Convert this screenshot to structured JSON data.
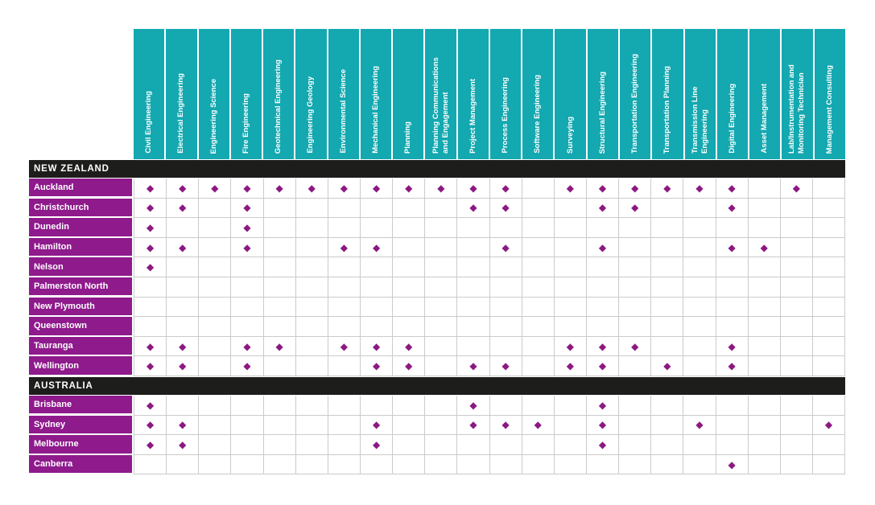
{
  "colors": {
    "teal": "#14A8B0",
    "purple": "#8E1A8C",
    "bar": "#1D1D1B",
    "grid": "#CBCBCB",
    "diamond": "#8C1982"
  },
  "chart_data": {
    "type": "table",
    "marker": "◆",
    "legend_note": "diamond marks discipline available at location",
    "columns": [
      "Civil Engineering",
      "Electrical Engineering",
      "Engineering Science",
      "Fire Engineering",
      "Geotechnical Engineering",
      "Engineering Geology",
      "Environmental Science",
      "Mechanical Engineering",
      "Planning",
      "Planning Communications and Engagement",
      "Project Management",
      "Process Engineering",
      "Software Engineering",
      "Surveying",
      "Structural Engineering",
      "Transportation Engineering",
      "Transportation Planning",
      "Transmission Line Engineering",
      "Digital Engineering",
      "Asset Management",
      "Lab/Instrumentation and Monitoring Technician",
      "Management Consulting"
    ],
    "sections": [
      {
        "title": "NEW ZEALAND",
        "rows": [
          {
            "location": "Auckland",
            "discipline_indices": [
              0,
              1,
              2,
              3,
              4,
              5,
              6,
              7,
              8,
              9,
              10,
              11,
              13,
              14,
              15,
              16,
              17,
              18,
              20
            ]
          },
          {
            "location": "Christchurch",
            "discipline_indices": [
              0,
              1,
              3,
              10,
              11,
              14,
              15,
              18
            ]
          },
          {
            "location": "Dunedin",
            "discipline_indices": [
              0,
              3
            ]
          },
          {
            "location": "Hamilton",
            "discipline_indices": [
              0,
              1,
              3,
              6,
              7,
              11,
              14,
              18,
              19
            ]
          },
          {
            "location": "Nelson",
            "discipline_indices": [
              0
            ]
          },
          {
            "location": "Palmerston North",
            "discipline_indices": []
          },
          {
            "location": "New Plymouth",
            "discipline_indices": []
          },
          {
            "location": "Queenstown",
            "discipline_indices": []
          },
          {
            "location": "Tauranga",
            "discipline_indices": [
              0,
              1,
              3,
              4,
              6,
              7,
              8,
              13,
              14,
              15,
              18
            ]
          },
          {
            "location": "Wellington",
            "discipline_indices": [
              0,
              1,
              3,
              7,
              8,
              10,
              11,
              13,
              14,
              16,
              18
            ]
          }
        ]
      },
      {
        "title": "AUSTRALIA",
        "rows": [
          {
            "location": "Brisbane",
            "discipline_indices": [
              0,
              10,
              14
            ]
          },
          {
            "location": "Sydney",
            "discipline_indices": [
              0,
              1,
              7,
              10,
              11,
              12,
              14,
              17,
              21
            ]
          },
          {
            "location": "Melbourne",
            "discipline_indices": [
              0,
              1,
              7,
              14
            ]
          },
          {
            "location": "Canberra",
            "discipline_indices": [
              18
            ]
          }
        ]
      }
    ]
  }
}
